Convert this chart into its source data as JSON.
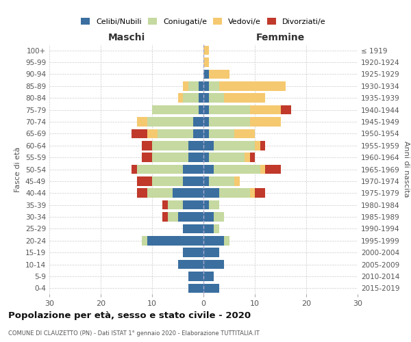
{
  "age_groups": [
    "0-4",
    "5-9",
    "10-14",
    "15-19",
    "20-24",
    "25-29",
    "30-34",
    "35-39",
    "40-44",
    "45-49",
    "50-54",
    "55-59",
    "60-64",
    "65-69",
    "70-74",
    "75-79",
    "80-84",
    "85-89",
    "90-94",
    "95-99",
    "100+"
  ],
  "birth_years": [
    "2015-2019",
    "2010-2014",
    "2005-2009",
    "2000-2004",
    "1995-1999",
    "1990-1994",
    "1985-1989",
    "1980-1984",
    "1975-1979",
    "1970-1974",
    "1965-1969",
    "1960-1964",
    "1955-1959",
    "1950-1954",
    "1945-1949",
    "1940-1944",
    "1935-1939",
    "1930-1934",
    "1925-1929",
    "1920-1924",
    "≤ 1919"
  ],
  "males": {
    "celibi": [
      3,
      3,
      5,
      4,
      11,
      4,
      5,
      4,
      6,
      4,
      4,
      3,
      3,
      2,
      2,
      1,
      1,
      1,
      0,
      0,
      0
    ],
    "coniugati": [
      0,
      0,
      0,
      0,
      1,
      0,
      2,
      3,
      5,
      6,
      9,
      7,
      7,
      7,
      9,
      9,
      3,
      2,
      0,
      0,
      0
    ],
    "vedovi": [
      0,
      0,
      0,
      0,
      0,
      0,
      0,
      0,
      0,
      0,
      0,
      0,
      0,
      2,
      2,
      0,
      1,
      1,
      0,
      0,
      0
    ],
    "divorziati": [
      0,
      0,
      0,
      0,
      0,
      0,
      1,
      1,
      2,
      3,
      1,
      2,
      2,
      3,
      0,
      0,
      0,
      0,
      0,
      0,
      0
    ]
  },
  "females": {
    "nubili": [
      3,
      2,
      4,
      3,
      4,
      2,
      2,
      1,
      3,
      1,
      2,
      1,
      2,
      1,
      1,
      1,
      1,
      1,
      1,
      0,
      0
    ],
    "coniugate": [
      0,
      0,
      0,
      0,
      1,
      1,
      2,
      2,
      6,
      5,
      9,
      7,
      8,
      5,
      8,
      8,
      3,
      2,
      0,
      0,
      0
    ],
    "vedove": [
      0,
      0,
      0,
      0,
      0,
      0,
      0,
      0,
      1,
      1,
      1,
      1,
      1,
      4,
      6,
      6,
      8,
      13,
      4,
      1,
      1
    ],
    "divorziate": [
      0,
      0,
      0,
      0,
      0,
      0,
      0,
      0,
      2,
      0,
      3,
      1,
      1,
      0,
      0,
      2,
      0,
      0,
      0,
      0,
      0
    ]
  },
  "colors": {
    "celibi": "#3b6fa0",
    "coniugati": "#c5d9a0",
    "vedovi": "#f5c970",
    "divorziati": "#c0392b"
  },
  "legend_labels": [
    "Celibi/Nubili",
    "Coniugati/e",
    "Vedovi/e",
    "Divorziati/e"
  ],
  "xlim": 30,
  "title": "Popolazione per età, sesso e stato civile - 2020",
  "subtitle": "COMUNE DI CLAUZETTO (PN) - Dati ISTAT 1° gennaio 2020 - Elaborazione TUTTITALIA.IT",
  "xlabel_left": "Maschi",
  "xlabel_right": "Femmine",
  "ylabel_left": "Fasce di età",
  "ylabel_right": "Anni di nascita",
  "bg_color": "#ffffff",
  "grid_color": "#cccccc"
}
